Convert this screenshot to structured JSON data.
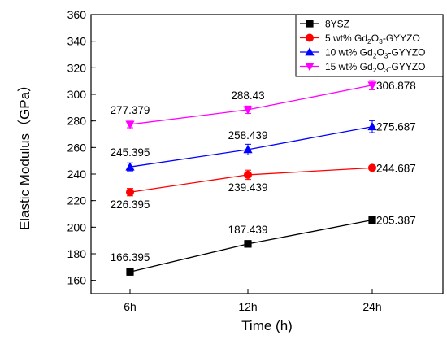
{
  "chart_data": {
    "type": "line",
    "xlabel": "Time (h)",
    "ylabel": "Elastic Modulus（GPa）",
    "categories": [
      "6h",
      "12h",
      "24h"
    ],
    "ylim": [
      150,
      360
    ],
    "yticks": [
      160,
      180,
      200,
      220,
      240,
      260,
      280,
      300,
      320,
      340,
      360
    ],
    "grid": false,
    "legend_position": "top-right",
    "series": [
      {
        "name": "8YSZ",
        "legend_parts": [
          [
            "8YSZ",
            ""
          ]
        ],
        "color": "#000000",
        "marker": "square",
        "values": [
          166.395,
          187.439,
          205.387
        ],
        "labels": [
          "166.395",
          "187.439",
          "205.387"
        ],
        "errors": [
          2.5,
          2.5,
          2.8
        ]
      },
      {
        "name": "5 wt% Gd2O3-GYYZO",
        "legend_parts": [
          [
            "5 wt% Gd",
            ""
          ],
          [
            "2",
            "sub"
          ],
          [
            "O",
            ""
          ],
          [
            "3",
            "sub"
          ],
          [
            "-GYYZO",
            ""
          ]
        ],
        "color": "#ff0000",
        "marker": "circle",
        "values": [
          226.395,
          239.439,
          244.687
        ],
        "labels": [
          "226.395",
          "239.439",
          "244.687"
        ],
        "errors": [
          2.8,
          3.5,
          1.5
        ]
      },
      {
        "name": "10 wt% Gd2O3-GYYZO",
        "legend_parts": [
          [
            "10 wt% Gd",
            ""
          ],
          [
            "2",
            "sub"
          ],
          [
            "O",
            ""
          ],
          [
            "3",
            "sub"
          ],
          [
            "-GYYZO",
            ""
          ]
        ],
        "color": "#0000ff",
        "marker": "triangle-up",
        "values": [
          245.395,
          258.439,
          275.687
        ],
        "labels": [
          "245.395",
          "258.439",
          "275.687"
        ],
        "errors": [
          3.0,
          4.0,
          4.5
        ]
      },
      {
        "name": "15 wt% Gd2O3-GYYZO",
        "legend_parts": [
          [
            "15 wt% Gd",
            ""
          ],
          [
            "2",
            "sub"
          ],
          [
            "O",
            ""
          ],
          [
            "3",
            "sub"
          ],
          [
            "-GYYZO",
            ""
          ]
        ],
        "color": "#ff00ff",
        "marker": "triangle-down",
        "values": [
          277.379,
          288.43,
          306.878
        ],
        "labels": [
          "277.379",
          "288.43",
          "306.878"
        ],
        "errors": [
          2.5,
          2.8,
          3.5
        ]
      }
    ]
  }
}
